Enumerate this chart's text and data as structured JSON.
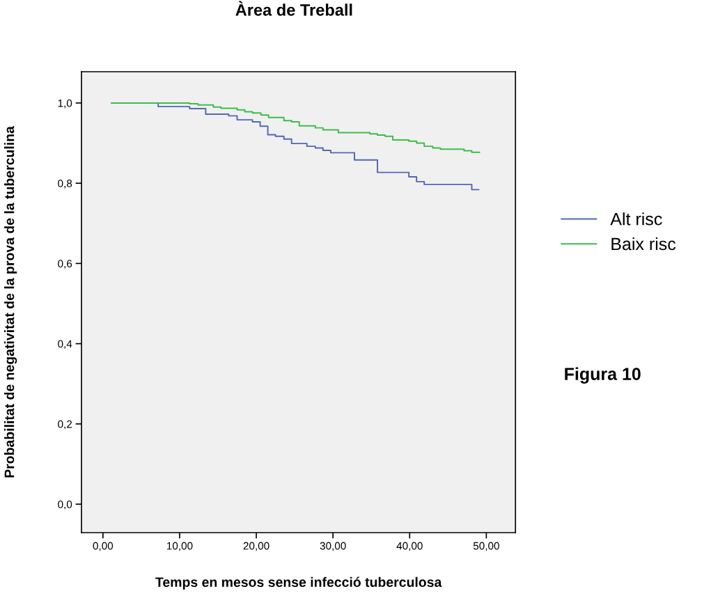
{
  "chart_data": {
    "type": "step",
    "title": "Àrea de Treball",
    "xlabel": "Temps en mesos sense infecció tuberculosa",
    "ylabel": "Probabilitat de negativitat de la prova de la tuberculina",
    "annotations": [
      "Figura 10"
    ],
    "xlim": [
      -2.8,
      53.8
    ],
    "ylim": [
      -0.071,
      1.078
    ],
    "xticks": [
      {
        "value": 0,
        "label": "0,00"
      },
      {
        "value": 10,
        "label": "10,00"
      },
      {
        "value": 20,
        "label": "20,00"
      },
      {
        "value": 30,
        "label": "30,00"
      },
      {
        "value": 40,
        "label": "40,00"
      },
      {
        "value": 50,
        "label": "50,00"
      }
    ],
    "yticks": [
      {
        "value": 0,
        "label": "0,0"
      },
      {
        "value": 0.2,
        "label": "0,2"
      },
      {
        "value": 0.4,
        "label": "0,4"
      },
      {
        "value": 0.6,
        "label": "0,6"
      },
      {
        "value": 0.8,
        "label": "0,8"
      },
      {
        "value": 1.0,
        "label": "1,0"
      }
    ],
    "grid": false,
    "legend": "right",
    "line_style": "solid",
    "marker": "none",
    "series": [
      {
        "name": "Alt risc",
        "color": "#5266b8",
        "x": [
          1.1,
          7.2,
          11.3,
          13.4,
          16.4,
          17.5,
          19.5,
          20.5,
          21.5,
          22.5,
          23.6,
          24.6,
          26.6,
          27.7,
          28.7,
          29.7,
          32.8,
          35.8,
          39.9,
          40.9,
          41.9,
          48.1,
          49.0
        ],
        "values": [
          1.0,
          0.991,
          0.986,
          0.972,
          0.968,
          0.958,
          0.953,
          0.942,
          0.921,
          0.917,
          0.91,
          0.899,
          0.892,
          0.888,
          0.882,
          0.876,
          0.858,
          0.827,
          0.816,
          0.804,
          0.797,
          0.784,
          0.784
        ]
      },
      {
        "name": "Baix risc",
        "color": "#3fbb4a",
        "x": [
          1.1,
          11.3,
          12.4,
          14.4,
          15.4,
          17.5,
          18.5,
          19.5,
          20.6,
          21.6,
          23.6,
          24.6,
          25.6,
          27.7,
          28.7,
          30.7,
          34.8,
          35.8,
          36.8,
          37.8,
          39.9,
          40.9,
          41.9,
          43.0,
          44.0,
          47.1,
          48.1,
          49.1
        ],
        "values": [
          1.0,
          0.998,
          0.995,
          0.99,
          0.987,
          0.983,
          0.978,
          0.975,
          0.97,
          0.964,
          0.956,
          0.953,
          0.943,
          0.938,
          0.933,
          0.926,
          0.923,
          0.92,
          0.917,
          0.908,
          0.905,
          0.9,
          0.892,
          0.888,
          0.885,
          0.881,
          0.877,
          0.877
        ]
      }
    ]
  }
}
